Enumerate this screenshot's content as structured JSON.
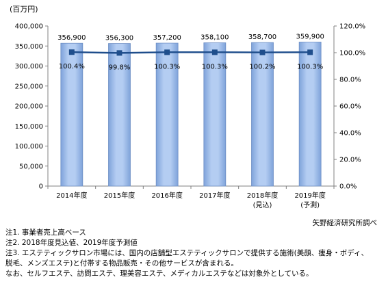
{
  "chart_data": {
    "type": "bar",
    "unit_label": "(百万円)",
    "categories": [
      "2014年度",
      "2015年度",
      "2016年度",
      "2017年度",
      "2018年度",
      "2019年度"
    ],
    "category_sublabels": [
      "",
      "",
      "",
      "",
      "(見込)",
      "(予測)"
    ],
    "series": [
      {
        "type": "bar",
        "axis": "left",
        "values": [
          356900,
          356300,
          357200,
          358100,
          358700,
          359900
        ],
        "labels": [
          "356,900",
          "356,300",
          "357,200",
          "358,100",
          "358,700",
          "359,900"
        ],
        "color": "#99BBEE"
      },
      {
        "type": "line",
        "axis": "right",
        "values": [
          100.4,
          99.8,
          100.3,
          100.3,
          100.2,
          100.3
        ],
        "labels": [
          "100.4%",
          "99.8%",
          "100.3%",
          "100.3%",
          "100.2%",
          "100.3%"
        ],
        "color": "#1F4E8C"
      }
    ],
    "ylim_left": [
      0,
      400000
    ],
    "yticks_left": [
      "0",
      "50,000",
      "100,000",
      "150,000",
      "200,000",
      "250,000",
      "300,000",
      "350,000",
      "400,000"
    ],
    "ylim_right": [
      0,
      120
    ],
    "yticks_right": [
      "0.0%",
      "20.0%",
      "40.0%",
      "60.0%",
      "80.0%",
      "100.0%",
      "120.0%"
    ],
    "grid": false
  },
  "source": "矢野経済研究所調べ",
  "notes": [
    "注1. 事業者売上高ベース",
    "注2. 2018年度見込値、2019年度予測値",
    "注3. エステティックサロン市場には、国内の店舗型エステティックサロンで提供する施術(美顔、痩身・ボディ、",
    "脱毛、メンズエステ)と付帯する物品販売・その他サービスが含まれる。",
    "なお、セルフエステ、訪問エステ、理美容エステ、メディカルエステなどは対象外としている。"
  ]
}
